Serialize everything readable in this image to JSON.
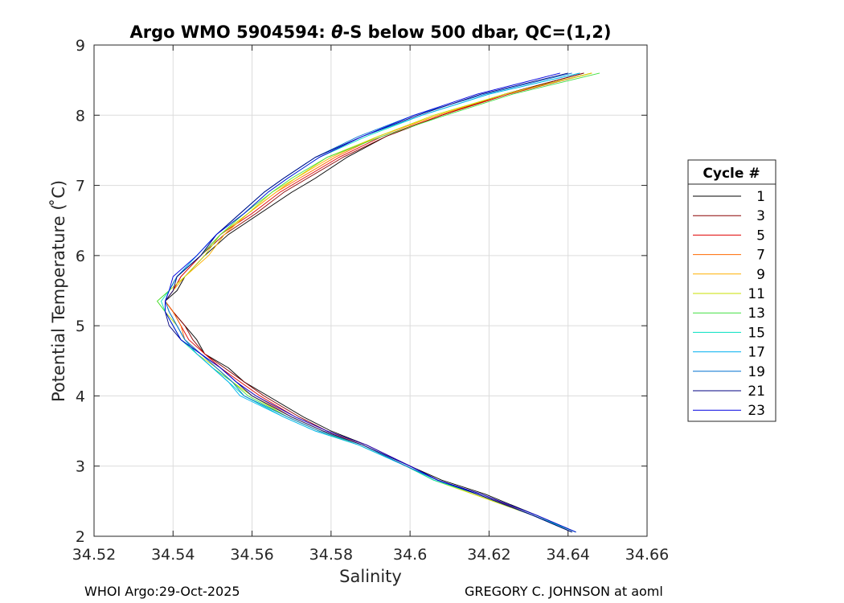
{
  "chart_data": {
    "type": "line",
    "title_prefix": "Argo WMO 5904594: ",
    "title_theta": "θ",
    "title_suffix": "-S below 500 dbar,  QC=(1,2)",
    "xlabel": "Salinity",
    "ylabel": "Potential Temperature ( ̊C)",
    "xlim": [
      34.52,
      34.66
    ],
    "ylim": [
      2,
      9
    ],
    "xticks": [
      "34.52",
      "34.54",
      "34.56",
      "34.58",
      "34.6",
      "34.62",
      "34.64",
      "34.66"
    ],
    "yticks": [
      "2",
      "3",
      "4",
      "5",
      "6",
      "7",
      "8",
      "9"
    ],
    "grid": true,
    "legend": {
      "title": "Cycle #",
      "position": "right",
      "entries": [
        {
          "label": "1",
          "color": "#000000"
        },
        {
          "label": "3",
          "color": "#8b0000"
        },
        {
          "label": "5",
          "color": "#e00000"
        },
        {
          "label": "7",
          "color": "#ff6a00"
        },
        {
          "label": "9",
          "color": "#ffb000"
        },
        {
          "label": "11",
          "color": "#c8e000"
        },
        {
          "label": "13",
          "color": "#40e040"
        },
        {
          "label": "15",
          "color": "#00e0c0"
        },
        {
          "label": "17",
          "color": "#00b0f0"
        },
        {
          "label": "19",
          "color": "#0070d0"
        },
        {
          "label": "21",
          "color": "#000080"
        },
        {
          "label": "23",
          "color": "#0000e0"
        }
      ]
    },
    "base_profile": {
      "theta": [
        2.06,
        2.3,
        2.6,
        2.8,
        3.0,
        3.3,
        3.5,
        3.7,
        4.0,
        4.2,
        4.4,
        4.6,
        4.8,
        5.0,
        5.2,
        5.35,
        5.5,
        5.7,
        6.0,
        6.3,
        6.6,
        6.9,
        7.1,
        7.4,
        7.7,
        8.0,
        8.3,
        8.6
      ],
      "salinity": [
        34.641,
        34.631,
        34.617,
        34.607,
        34.6,
        34.589,
        34.579,
        34.571,
        34.562,
        34.557,
        34.552,
        34.547,
        34.543,
        34.541,
        34.539,
        34.538,
        34.539,
        34.541,
        34.547,
        34.552,
        34.558,
        34.564,
        34.569,
        34.578,
        34.59,
        34.605,
        34.622,
        34.643
      ]
    },
    "series": [
      {
        "name": "1",
        "offsets": [
          0.001,
          0.001,
          0.002,
          0.001,
          0.0,
          0.0,
          0.001,
          0.002,
          0.002,
          0.001,
          0.002,
          0.001,
          0.003,
          0.002,
          0.001,
          0.0,
          0.002,
          0.002,
          0.001,
          0.002,
          0.004,
          0.006,
          0.007,
          0.006,
          0.004,
          0.003,
          0.002,
          0.001
        ]
      },
      {
        "name": "3",
        "offsets": [
          0.0,
          0.0,
          0.001,
          0.0,
          0.0,
          0.0,
          0.0,
          0.001,
          0.001,
          0.001,
          0.001,
          0.001,
          0.002,
          0.002,
          0.001,
          0.0,
          0.001,
          0.001,
          0.0,
          0.001,
          0.003,
          0.004,
          0.005,
          0.005,
          0.004,
          0.003,
          0.002,
          0.001
        ]
      },
      {
        "name": "5",
        "offsets": [
          0.0,
          0.0,
          0.0,
          0.0,
          0.0,
          0.0,
          0.0,
          0.0,
          0.0,
          0.0,
          0.0,
          0.001,
          0.001,
          0.001,
          0.001,
          0.0,
          0.001,
          0.001,
          0.0,
          0.0,
          0.002,
          0.003,
          0.004,
          0.004,
          0.003,
          0.003,
          0.003,
          0.003
        ]
      },
      {
        "name": "7",
        "offsets": [
          0.0,
          0.0,
          0.0,
          0.0,
          0.0,
          0.0,
          -0.001,
          -0.001,
          -0.001,
          -0.001,
          0.0,
          0.0,
          0.0,
          0.001,
          0.001,
          0.0,
          0.0,
          0.0,
          0.0,
          0.0,
          0.001,
          0.002,
          0.003,
          0.003,
          0.002,
          0.002,
          0.002,
          0.003
        ]
      },
      {
        "name": "9",
        "offsets": [
          0.0,
          0.0,
          -0.001,
          -0.001,
          -0.001,
          -0.001,
          -0.001,
          -0.001,
          -0.002,
          -0.002,
          -0.001,
          0.0,
          0.0,
          0.0,
          0.0,
          0.0,
          0.001,
          0.002,
          0.002,
          0.001,
          0.001,
          0.002,
          0.002,
          0.002,
          0.002,
          0.002,
          0.002,
          0.003
        ]
      },
      {
        "name": "11",
        "offsets": [
          0.0,
          0.0,
          -0.001,
          -0.001,
          -0.001,
          -0.001,
          -0.002,
          -0.002,
          -0.002,
          -0.002,
          -0.001,
          -0.001,
          0.0,
          0.0,
          -0.001,
          -0.002,
          0.0,
          0.002,
          0.001,
          0.0,
          0.001,
          0.001,
          0.002,
          0.001,
          0.002,
          0.001,
          0.002,
          0.003
        ]
      },
      {
        "name": "13",
        "offsets": [
          0.001,
          0.0,
          0.0,
          -0.001,
          -0.001,
          -0.002,
          -0.002,
          -0.002,
          -0.003,
          -0.002,
          -0.002,
          -0.001,
          -0.001,
          -0.001,
          -0.001,
          -0.002,
          0.0,
          0.0,
          0.0,
          0.0,
          0.0,
          0.001,
          0.001,
          0.001,
          0.003,
          0.004,
          0.004,
          0.005
        ]
      },
      {
        "name": "15",
        "offsets": [
          0.001,
          0.0,
          0.0,
          -0.001,
          -0.001,
          -0.002,
          -0.003,
          -0.003,
          -0.004,
          -0.003,
          -0.002,
          -0.001,
          -0.001,
          -0.001,
          -0.001,
          -0.001,
          0.0,
          0.0,
          -0.001,
          -0.001,
          0.0,
          0.0,
          0.0,
          -0.001,
          -0.001,
          -0.002,
          -0.002,
          0.0
        ]
      },
      {
        "name": "17",
        "offsets": [
          0.0,
          0.0,
          0.0,
          0.0,
          -0.001,
          -0.002,
          -0.003,
          -0.003,
          -0.005,
          -0.003,
          -0.002,
          -0.001,
          0.0,
          0.0,
          0.0,
          0.0,
          0.0,
          0.0,
          -0.001,
          -0.001,
          -0.001,
          -0.001,
          -0.001,
          -0.002,
          -0.002,
          -0.002,
          -0.002,
          0.0
        ]
      },
      {
        "name": "19",
        "offsets": [
          0.0,
          0.0,
          0.0,
          0.0,
          -0.001,
          -0.001,
          -0.002,
          -0.002,
          -0.004,
          -0.002,
          -0.001,
          0.0,
          0.0,
          0.0,
          0.0,
          0.0,
          0.0,
          0.0,
          0.0,
          -0.001,
          -0.001,
          -0.001,
          -0.001,
          -0.002,
          -0.003,
          -0.004,
          -0.003,
          -0.002
        ]
      },
      {
        "name": "21",
        "offsets": [
          0.0,
          0.0,
          0.0,
          0.0,
          0.0,
          -0.001,
          -0.001,
          -0.001,
          -0.002,
          -0.001,
          0.0,
          0.0,
          -0.001,
          -0.002,
          -0.001,
          0.0,
          0.001,
          0.0,
          0.0,
          -0.001,
          -0.001,
          -0.001,
          -0.001,
          -0.002,
          -0.002,
          -0.003,
          -0.004,
          -0.003
        ]
      },
      {
        "name": "23",
        "offsets": [
          0.001,
          0.001,
          0.001,
          0.0,
          0.0,
          0.0,
          0.0,
          0.0,
          -0.001,
          -0.001,
          0.0,
          0.0,
          -0.001,
          -0.001,
          -0.001,
          0.0,
          0.0,
          -0.001,
          -0.001,
          -0.001,
          0.0,
          0.0,
          0.0,
          -0.001,
          -0.002,
          -0.004,
          -0.005,
          -0.005
        ]
      }
    ]
  },
  "footer": {
    "left": "WHOI Argo:29-Oct-2025",
    "right": "GREGORY C. JOHNSON at aoml"
  }
}
